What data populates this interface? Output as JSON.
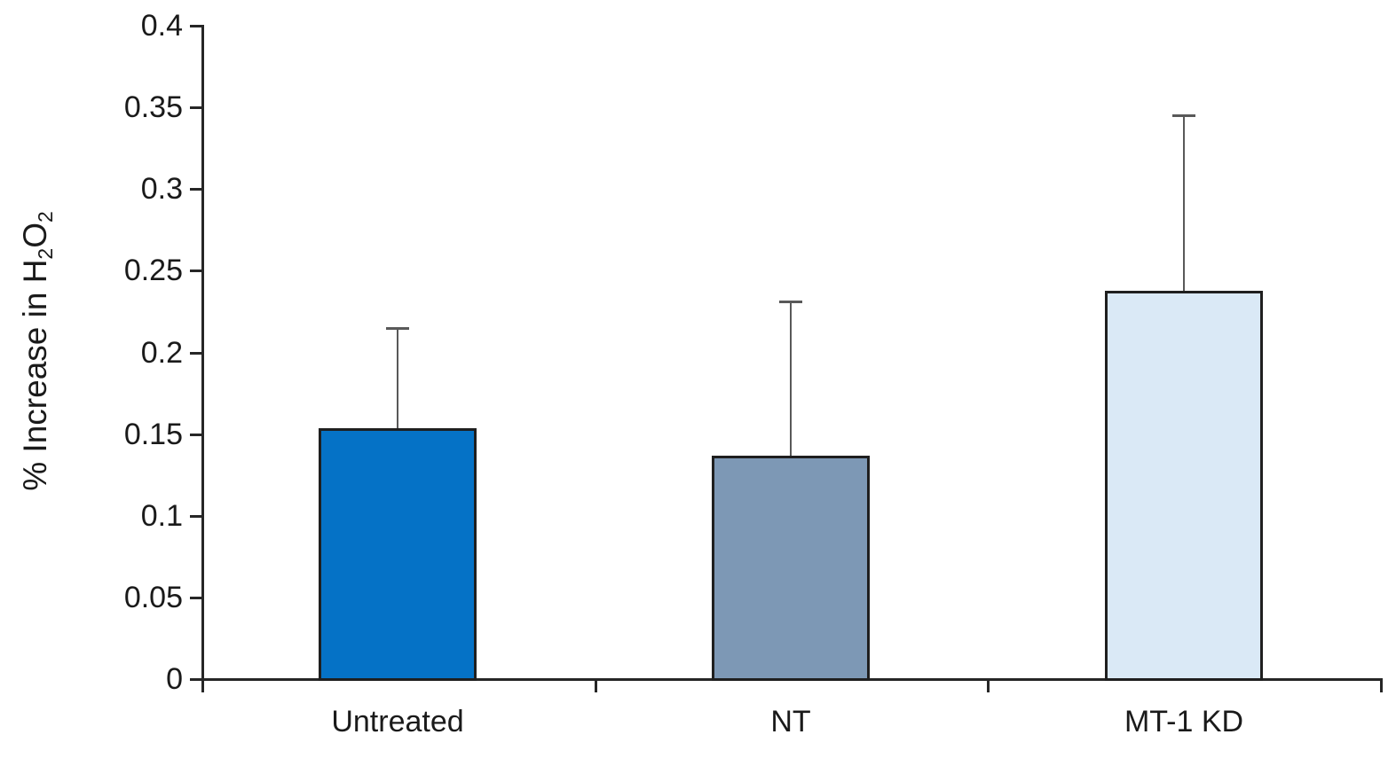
{
  "chart_data": {
    "type": "bar",
    "title": "",
    "categories": [
      "Untreated",
      "NT",
      "MT-1 KD"
    ],
    "values": [
      0.153,
      0.136,
      0.237
    ],
    "error_plus": [
      0.062,
      0.095,
      0.108
    ],
    "bar_colors": [
      "#0572C6",
      "#7D98B5",
      "#DAE9F6"
    ],
    "bar_border_color": "#1F1F1F",
    "error_bar_color": "#595959",
    "xlabel": "",
    "ylabel": "% Increase in H2O2",
    "ylim": [
      0,
      0.4
    ],
    "ytick_step": 0.05,
    "ytick_labels": [
      "0",
      "0.05",
      "0.1",
      "0.15",
      "0.2",
      "0.25",
      "0.3",
      "0.35",
      "0.4"
    ],
    "grid": false,
    "legend_position": "none"
  },
  "yaxis_title": {
    "prefix": "% Increase in H",
    "sub1": "2",
    "mid": "O",
    "sub2": "2"
  }
}
